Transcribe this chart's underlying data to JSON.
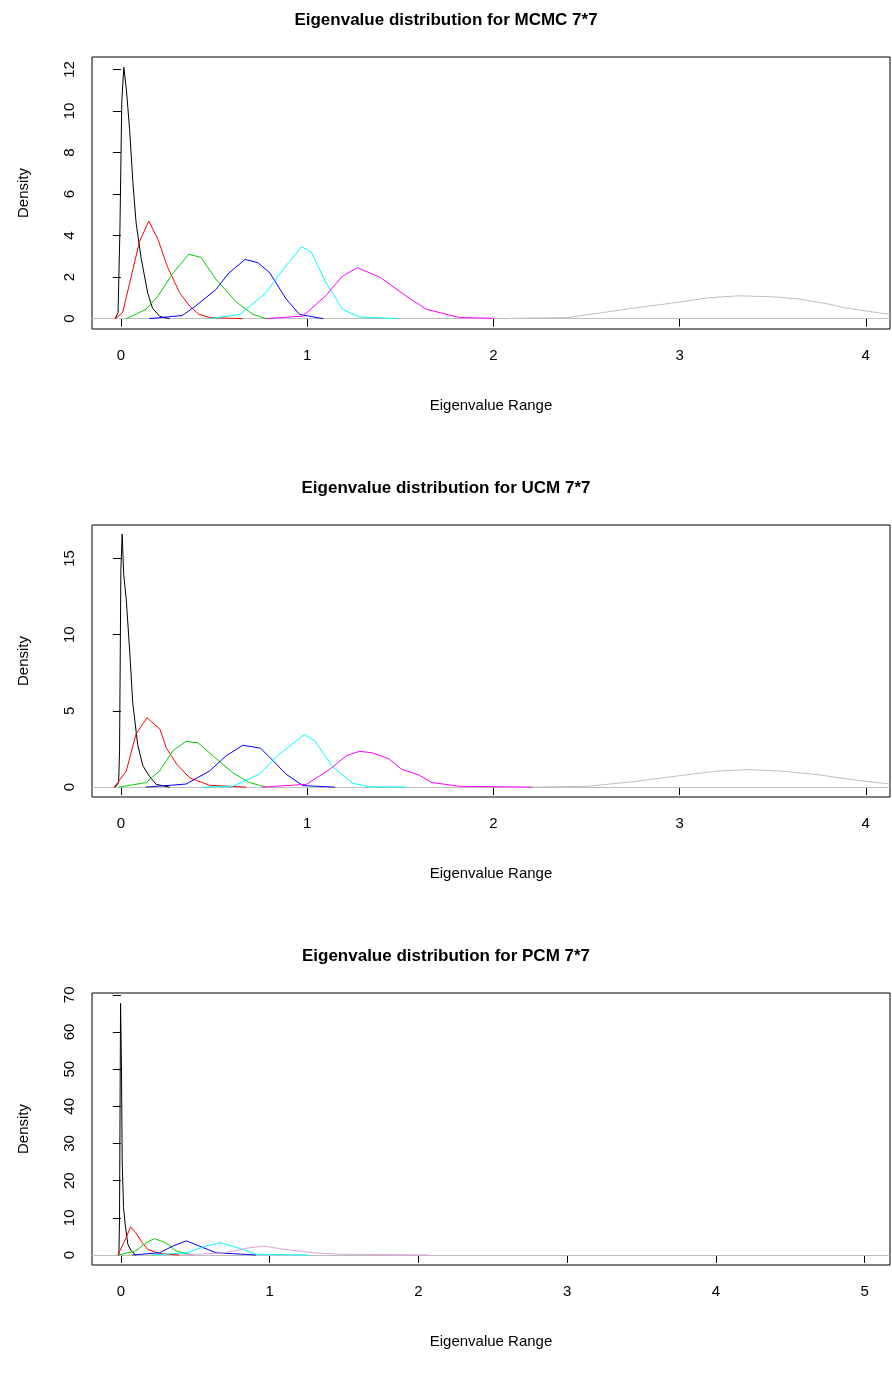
{
  "chart_data": [
    {
      "type": "line",
      "title": "Eigenvalue distribution for MCMC 7*7",
      "xlabel": "Eigenvalue Range",
      "ylabel": "Density",
      "xlim": [
        -0.155,
        4.13
      ],
      "ylim": [
        -0.5,
        12.6
      ],
      "xticks": [
        0,
        1,
        2,
        3,
        4
      ],
      "yticks": [
        0,
        2,
        4,
        6,
        8,
        10,
        12
      ],
      "grid": false,
      "marker": "none",
      "line_style": "solid",
      "ref_lines": [
        {
          "axis": "y",
          "value": 0,
          "color": "#bebebe"
        }
      ],
      "series": [
        {
          "color": "#000000",
          "x": [
            -0.03,
            -0.015,
            -0.005,
            0.005,
            0.016,
            0.03,
            0.047,
            0.065,
            0.082,
            0.109,
            0.145,
            0.17,
            0.21,
            0.26
          ],
          "values": [
            0,
            0.3,
            4.3,
            10.5,
            12.1,
            11,
            9.1,
            6.5,
            4.6,
            2.9,
            1.2,
            0.5,
            0.1,
            0
          ]
        },
        {
          "color": "#ff0000",
          "x": [
            -0.03,
            0.01,
            0.047,
            0.1,
            0.15,
            0.2,
            0.25,
            0.315,
            0.37,
            0.42,
            0.48,
            0.65
          ],
          "values": [
            0,
            0.3,
            1.7,
            3.7,
            4.7,
            3.8,
            2.5,
            1.25,
            0.6,
            0.2,
            0.05,
            0
          ]
        },
        {
          "color": "#00cd00",
          "x": [
            0.03,
            0.136,
            0.2,
            0.28,
            0.365,
            0.43,
            0.51,
            0.62,
            0.71,
            0.78
          ],
          "values": [
            0,
            0.45,
            1.1,
            2.2,
            3.1,
            2.95,
            1.9,
            0.8,
            0.2,
            0
          ]
        },
        {
          "color": "#0000ff",
          "x": [
            0.154,
            0.33,
            0.4,
            0.51,
            0.58,
            0.667,
            0.735,
            0.8,
            0.887,
            0.96,
            1.085
          ],
          "values": [
            0,
            0.15,
            0.6,
            1.4,
            2.2,
            2.85,
            2.7,
            2.2,
            0.95,
            0.2,
            0
          ]
        },
        {
          "color": "#00ffff",
          "x": [
            0.476,
            0.64,
            0.78,
            0.887,
            0.97,
            1.02,
            1.1,
            1.19,
            1.28,
            1.48
          ],
          "values": [
            0,
            0.2,
            1.25,
            2.55,
            3.45,
            3.25,
            1.75,
            0.45,
            0.08,
            0
          ]
        },
        {
          "color": "#ff00ff",
          "x": [
            0.78,
            0.977,
            1.1,
            1.19,
            1.27,
            1.39,
            1.53,
            1.64,
            1.82,
            2.07
          ],
          "values": [
            0,
            0.12,
            1.1,
            2.05,
            2.45,
            2.0,
            1.1,
            0.45,
            0.05,
            0
          ]
        },
        {
          "color": "#bebebe",
          "x": [
            2.0,
            2.4,
            2.67,
            3.0,
            3.15,
            3.32,
            3.5,
            3.64,
            3.8,
            3.9,
            4.13
          ],
          "values": [
            0,
            0.05,
            0.4,
            0.8,
            1.0,
            1.1,
            1.05,
            0.95,
            0.7,
            0.5,
            0.2
          ]
        }
      ]
    },
    {
      "type": "line",
      "title": "Eigenvalue distribution for UCM 7*7",
      "xlabel": "Eigenvalue Range",
      "ylabel": "Density",
      "xlim": [
        -0.155,
        4.13
      ],
      "ylim": [
        -0.65,
        17.2
      ],
      "xticks": [
        0,
        1,
        2,
        3,
        4
      ],
      "yticks": [
        0,
        5,
        10,
        15
      ],
      "grid": false,
      "marker": "none",
      "line_style": "solid",
      "ref_lines": [
        {
          "axis": "y",
          "value": 0,
          "color": "#bebebe"
        }
      ],
      "series": [
        {
          "color": "#000000",
          "x": [
            -0.03,
            -0.012,
            -0.007,
            0.0,
            0.007,
            0.015,
            0.029,
            0.047,
            0.064,
            0.09,
            0.118,
            0.154,
            0.19,
            0.26
          ],
          "values": [
            0,
            0.3,
            2.4,
            14.3,
            16.6,
            14,
            12.3,
            9,
            5.5,
            2.8,
            1.4,
            0.7,
            0.18,
            0
          ]
        },
        {
          "color": "#ff0000",
          "x": [
            -0.035,
            0.029,
            0.082,
            0.14,
            0.21,
            0.243,
            0.3,
            0.37,
            0.476,
            0.67
          ],
          "values": [
            0,
            1.05,
            3.5,
            4.55,
            3.8,
            2.6,
            1.5,
            0.6,
            0.12,
            0
          ]
        },
        {
          "color": "#00cd00",
          "x": [
            -0.01,
            0.136,
            0.207,
            0.28,
            0.35,
            0.415,
            0.494,
            0.6,
            0.69,
            0.78
          ],
          "values": [
            0,
            0.3,
            1.05,
            2.4,
            3.0,
            2.9,
            2.05,
            0.95,
            0.3,
            0
          ]
        },
        {
          "color": "#0000ff",
          "x": [
            0.136,
            0.35,
            0.476,
            0.565,
            0.655,
            0.75,
            0.82,
            0.887,
            0.977,
            1.146
          ],
          "values": [
            0,
            0.2,
            1.05,
            2.05,
            2.75,
            2.55,
            1.7,
            0.85,
            0.1,
            0
          ]
        },
        {
          "color": "#00ffff",
          "x": [
            0.44,
            0.6,
            0.744,
            0.85,
            0.986,
            1.04,
            1.14,
            1.245,
            1.335,
            1.53
          ],
          "values": [
            0,
            0.05,
            0.85,
            2.15,
            3.45,
            3.05,
            1.3,
            0.25,
            0.02,
            0
          ]
        },
        {
          "color": "#ff00ff",
          "x": [
            0.76,
            0.996,
            1.12,
            1.21,
            1.28,
            1.35,
            1.44,
            1.51,
            1.6,
            1.67,
            1.82,
            2.21
          ],
          "values": [
            0,
            0.18,
            1.15,
            2.05,
            2.35,
            2.25,
            1.85,
            1.15,
            0.8,
            0.3,
            0.05,
            0
          ]
        },
        {
          "color": "#bebebe",
          "x": [
            2.2,
            2.5,
            2.75,
            3.0,
            3.2,
            3.37,
            3.55,
            3.75,
            3.95,
            4.13
          ],
          "values": [
            0,
            0.05,
            0.35,
            0.75,
            1.05,
            1.15,
            1.05,
            0.8,
            0.45,
            0.2
          ]
        }
      ]
    },
    {
      "type": "line",
      "title": "Eigenvalue distribution for PCM 7*7",
      "xlabel": "Eigenvalue Range",
      "ylabel": "Density",
      "xlim": [
        -0.194,
        5.17
      ],
      "ylim": [
        -2.7,
        70.5
      ],
      "xticks": [
        0,
        1,
        2,
        3,
        4,
        5
      ],
      "yticks": [
        0,
        10,
        20,
        30,
        40,
        50,
        60,
        70
      ],
      "grid": false,
      "marker": "none",
      "line_style": "solid",
      "ref_lines": [
        {
          "axis": "y",
          "value": 0,
          "color": "#bebebe"
        }
      ],
      "series": [
        {
          "color": "#000000",
          "x": [
            -0.013,
            -0.009,
            -0.002,
            0.004,
            0.009,
            0.018,
            0.029,
            0.047,
            0.069,
            0.1
          ],
          "values": [
            0,
            10,
            67.7,
            51,
            25,
            12.7,
            8.3,
            2.9,
            1.1,
            0
          ]
        },
        {
          "color": "#ff0000",
          "x": [
            -0.02,
            0.036,
            0.065,
            0.1,
            0.14,
            0.18,
            0.26,
            0.39
          ],
          "values": [
            0,
            4.7,
            7.6,
            6,
            3.5,
            1.5,
            0.4,
            0
          ]
        },
        {
          "color": "#00cd00",
          "x": [
            -0.01,
            0.1,
            0.17,
            0.225,
            0.3,
            0.37,
            0.48
          ],
          "values": [
            0,
            1.1,
            3.3,
            4.4,
            3.3,
            1.1,
            0
          ]
        },
        {
          "color": "#0000ff",
          "x": [
            0.08,
            0.26,
            0.35,
            0.44,
            0.527,
            0.64,
            0.906
          ],
          "values": [
            0,
            0.6,
            2.4,
            3.8,
            2.4,
            0.6,
            0
          ]
        },
        {
          "color": "#00ffff",
          "x": [
            0.21,
            0.44,
            0.57,
            0.67,
            0.795,
            0.906,
            1.26
          ],
          "values": [
            0,
            0.6,
            2.4,
            3.3,
            1.8,
            0.2,
            0
          ]
        },
        {
          "color": "#dda0dd",
          "x": [
            0.415,
            0.705,
            0.84,
            0.96,
            1.1,
            1.29,
            1.45,
            2.07
          ],
          "values": [
            0,
            0.6,
            1.8,
            2.4,
            1.5,
            0.6,
            0.2,
            0
          ]
        }
      ]
    }
  ]
}
